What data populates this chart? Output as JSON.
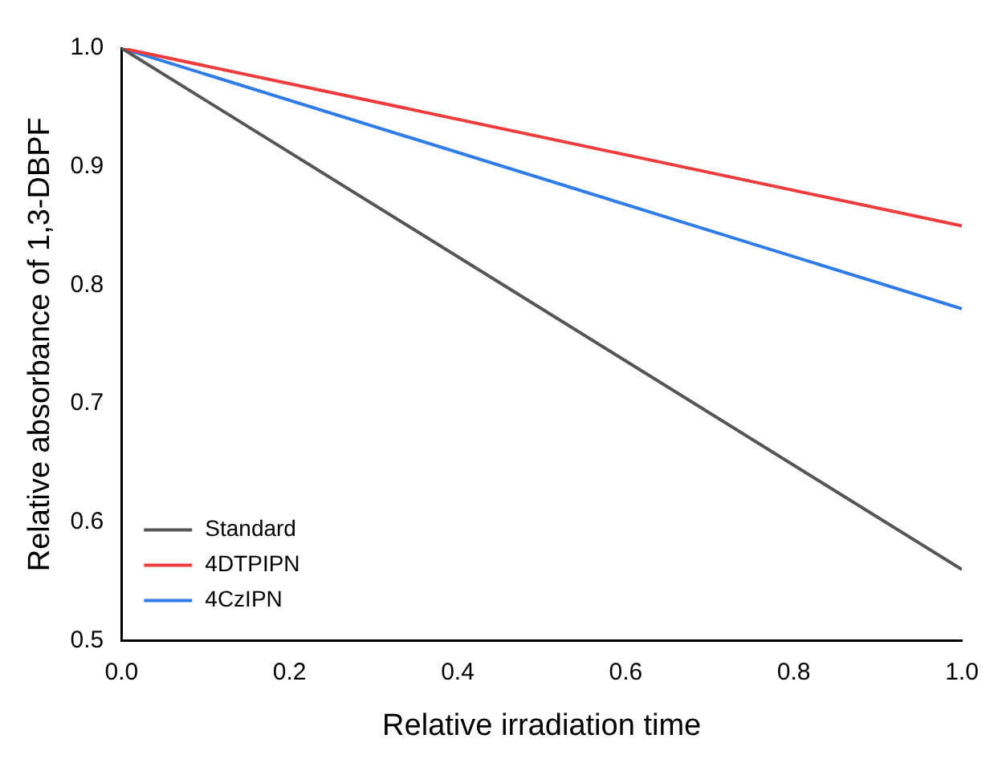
{
  "chart_data": {
    "type": "line",
    "xlabel": "Relative irradiation time",
    "ylabel": "Relative absorbance of 1,3-DBPF",
    "x": [
      0,
      1
    ],
    "series": [
      {
        "name": "Standard",
        "color": "#555555",
        "values": [
          1,
          0.56
        ]
      },
      {
        "name": "4DTPIPN",
        "color": "#ef3b3b",
        "values": [
          1,
          0.85
        ]
      },
      {
        "name": "4CzIPN",
        "color": "#2f7be8",
        "values": [
          1,
          0.78
        ]
      }
    ],
    "xlim": [
      0,
      1
    ],
    "xticks": [
      {
        "value": 0,
        "label": "0.0"
      },
      0.2,
      0.4,
      0.6,
      0.8,
      {
        "value": 1,
        "label": "1.0"
      }
    ],
    "ylim": [
      0.5,
      1
    ],
    "yticks": [
      0.5,
      0.6,
      0.7,
      0.8,
      0.9,
      {
        "value": 1,
        "label": "1.0"
      }
    ],
    "grid": false,
    "legend": "bottom left",
    "marker": "none",
    "line_style": "solid"
  }
}
